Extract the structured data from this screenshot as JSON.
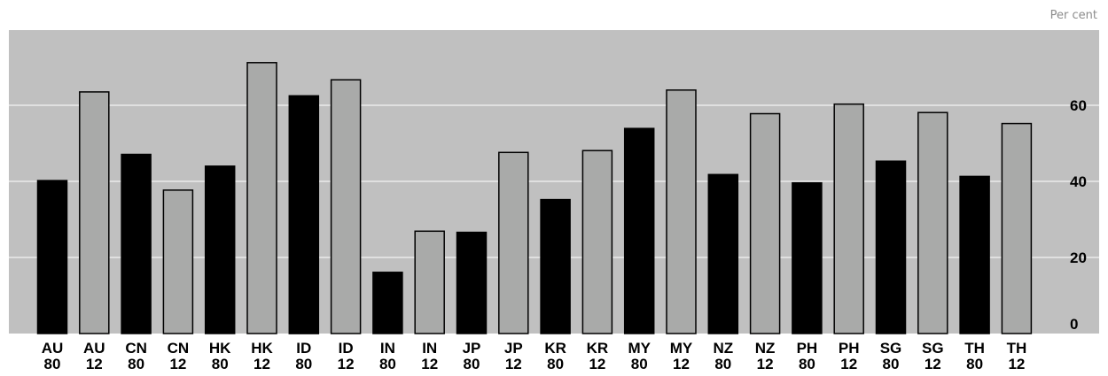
{
  "chart_data": {
    "type": "bar",
    "unit_label": "Per cent",
    "categories": [
      "AU 80",
      "AU 12",
      "CN 80",
      "CN 12",
      "HK 80",
      "HK 12",
      "ID 80",
      "ID 12",
      "IN 80",
      "IN 12",
      "JP 80",
      "JP 12",
      "KR 80",
      "KR 12",
      "MY 80",
      "MY 12",
      "NZ 80",
      "NZ 12",
      "PH 80",
      "PH 12",
      "SG 80",
      "SG 12",
      "TH 80",
      "TH 12"
    ],
    "values": [
      40.2,
      63.5,
      47.1,
      37.7,
      44.0,
      71.2,
      62.5,
      66.7,
      16.1,
      26.9,
      26.6,
      47.6,
      35.2,
      48.1,
      53.9,
      64.0,
      41.8,
      57.8,
      39.6,
      60.3,
      45.3,
      58.1,
      41.3,
      55.2
    ],
    "bar_colors": [
      "#000000",
      "#a9aaa9",
      "#000000",
      "#a9aaa9",
      "#000000",
      "#a9aaa9",
      "#000000",
      "#a9aaa9",
      "#000000",
      "#a9aaa9",
      "#000000",
      "#a9aaa9",
      "#000000",
      "#a9aaa9",
      "#000000",
      "#a9aaa9",
      "#000000",
      "#a9aaa9",
      "#000000",
      "#a9aaa9",
      "#000000",
      "#a9aaa9",
      "#000000",
      "#a9aaa9"
    ],
    "yticks": [
      0,
      20,
      40,
      60
    ],
    "ylim": [
      0,
      80
    ],
    "grid": true,
    "colors": {
      "plot_background": "#c0c0c0",
      "gridline": "#ffffff"
    }
  }
}
